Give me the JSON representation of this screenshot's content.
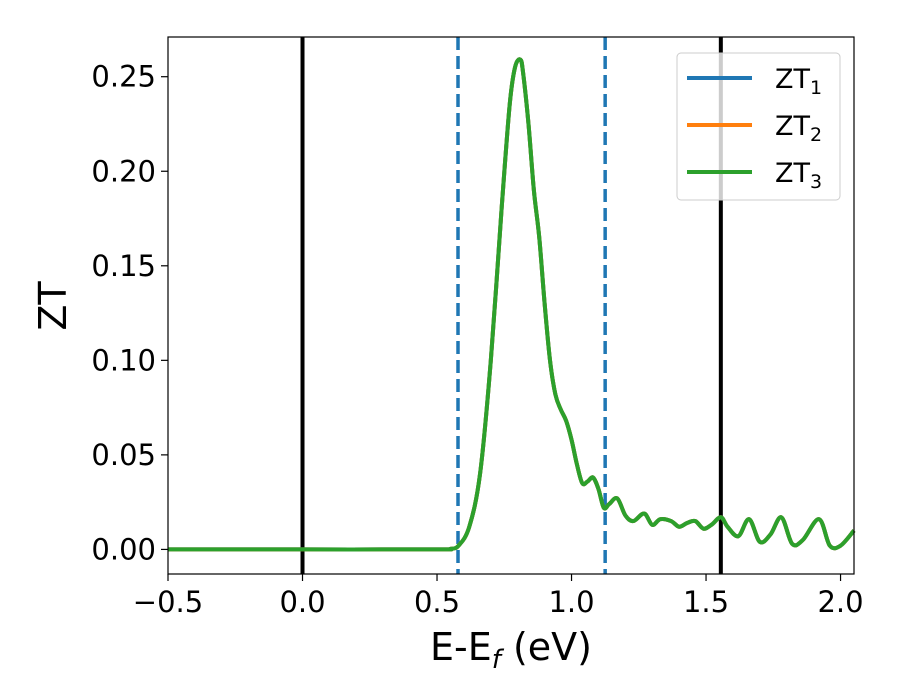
{
  "chart_data": {
    "type": "line",
    "xlabel": "E-E",
    "xlabel_sub": "f",
    "xlabel_unit": " (eV)",
    "ylabel": "ZT",
    "xlim": [
      -0.5,
      2.05
    ],
    "ylim": [
      -0.013,
      0.271
    ],
    "xticks": [
      -0.5,
      0.0,
      0.5,
      1.0,
      1.5,
      2.0
    ],
    "xtick_labels": [
      "−0.5",
      "0.0",
      "0.5",
      "1.0",
      "1.5",
      "2.0"
    ],
    "yticks": [
      0.0,
      0.05,
      0.1,
      0.15,
      0.2,
      0.25
    ],
    "ytick_labels": [
      "0.00",
      "0.05",
      "0.10",
      "0.15",
      "0.20",
      "0.25"
    ],
    "grid": false,
    "legend_position": "top-right",
    "vlines": [
      {
        "x": 0.0,
        "style": "solid",
        "color": "#000000"
      },
      {
        "x": 1.555,
        "style": "solid",
        "color": "#000000"
      },
      {
        "x": 0.578,
        "style": "dashed",
        "color": "#1f77b4"
      },
      {
        "x": 1.125,
        "style": "dashed",
        "color": "#1f77b4"
      }
    ],
    "series": [
      {
        "name": "ZT",
        "sub": "1",
        "color": "#1f77b4"
      },
      {
        "name": "ZT",
        "sub": "2",
        "color": "#ff7f0e"
      },
      {
        "name": "ZT",
        "sub": "3",
        "color": "#2ca02c"
      }
    ],
    "x": [
      -0.5,
      0.0,
      0.5,
      0.55,
      0.58,
      0.62,
      0.66,
      0.7,
      0.74,
      0.77,
      0.79,
      0.81,
      0.82,
      0.84,
      0.86,
      0.88,
      0.9,
      0.92,
      0.94,
      0.96,
      0.98,
      1.0,
      1.02,
      1.04,
      1.06,
      1.08,
      1.1,
      1.12,
      1.14,
      1.17,
      1.2,
      1.23,
      1.27,
      1.3,
      1.33,
      1.37,
      1.4,
      1.43,
      1.46,
      1.49,
      1.52,
      1.555,
      1.58,
      1.62,
      1.66,
      1.7,
      1.74,
      1.78,
      1.82,
      1.86,
      1.92,
      1.96,
      2.0,
      2.05
    ],
    "y": [
      0.0,
      0.0,
      0.0,
      0.0003,
      0.002,
      0.012,
      0.04,
      0.1,
      0.18,
      0.235,
      0.255,
      0.259,
      0.252,
      0.225,
      0.19,
      0.165,
      0.13,
      0.1,
      0.082,
      0.074,
      0.068,
      0.058,
      0.045,
      0.035,
      0.036,
      0.038,
      0.032,
      0.022,
      0.024,
      0.027,
      0.018,
      0.015,
      0.019,
      0.013,
      0.016,
      0.015,
      0.012,
      0.014,
      0.015,
      0.011,
      0.013,
      0.017,
      0.012,
      0.007,
      0.016,
      0.004,
      0.008,
      0.017,
      0.003,
      0.005,
      0.016,
      0.002,
      0.002,
      0.01
    ]
  }
}
